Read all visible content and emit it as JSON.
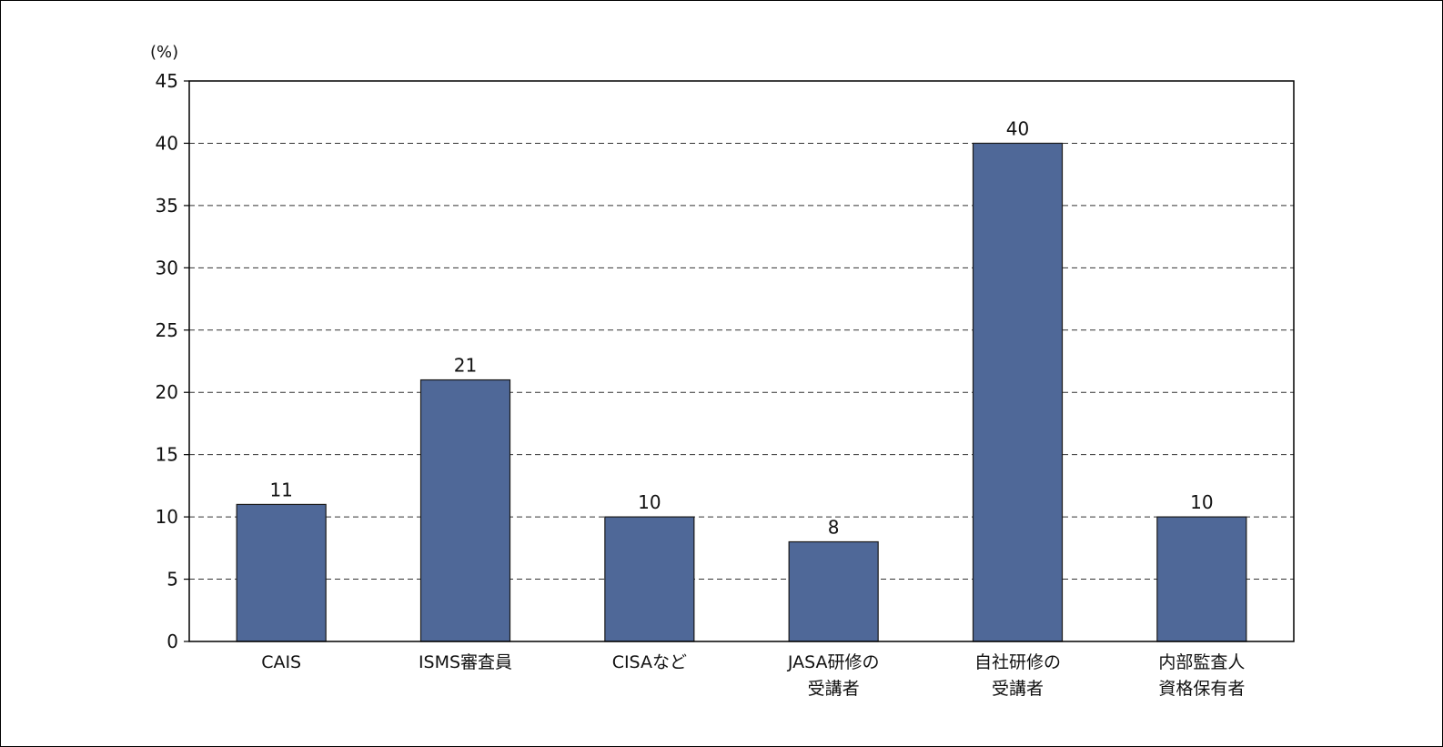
{
  "chart_data": {
    "type": "bar",
    "y_unit": "(%)",
    "ylim": [
      0,
      45
    ],
    "y_ticks": [
      0,
      5,
      10,
      15,
      20,
      25,
      30,
      35,
      40,
      45
    ],
    "grid": true,
    "categories": [
      [
        "CAIS"
      ],
      [
        "ISMS審査員"
      ],
      [
        "CISAなど"
      ],
      [
        "JASA研修の",
        "受講者"
      ],
      [
        "自社研修の",
        "受講者"
      ],
      [
        "内部監査人",
        "資格保有者"
      ]
    ],
    "values": [
      11,
      21,
      10,
      8,
      40,
      10
    ],
    "data_labels": [
      "11",
      "21",
      "10",
      "8",
      "40",
      "10"
    ],
    "colors": {
      "bar": "#4f6898",
      "bar_stroke": "#1a1a1a",
      "axis": "#000000",
      "grid": "#333333"
    }
  }
}
